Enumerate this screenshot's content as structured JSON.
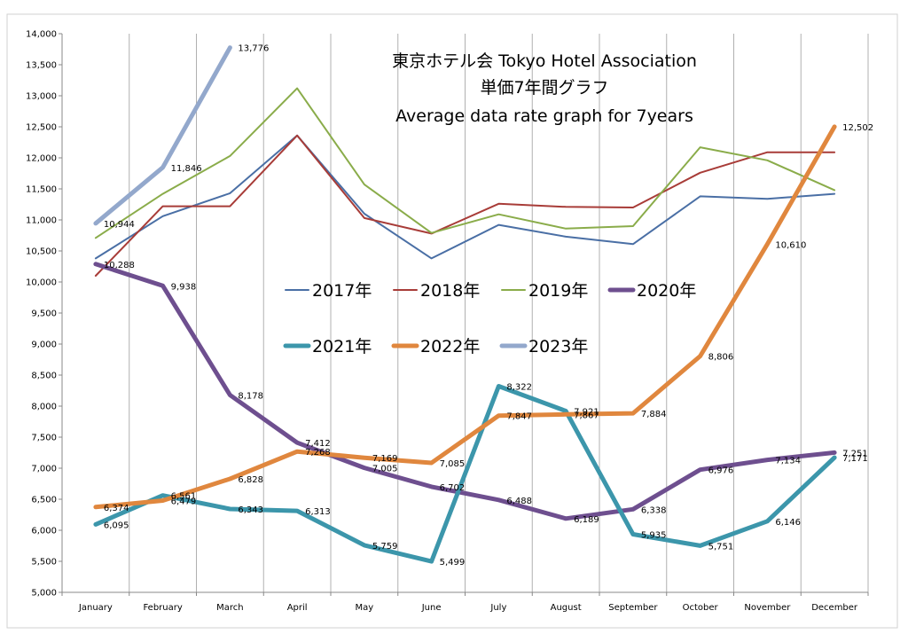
{
  "chart_data": {
    "type": "line",
    "title_lines": [
      "東京ホテル会  Tokyo Hotel Association",
      "単価7年間グラフ",
      "Average data rate graph for 7years"
    ],
    "xlabel": "",
    "ylabel": "",
    "categories": [
      "January",
      "February",
      "March",
      "April",
      "May",
      "June",
      "July",
      "August",
      "September",
      "October",
      "November",
      "December"
    ],
    "ylim": [
      5000,
      14000
    ],
    "ytick_step": 500,
    "ytick_labels": [
      "5,000",
      "5,500",
      "6,000",
      "6,500",
      "7,000",
      "7,500",
      "8,000",
      "8,500",
      "9,000",
      "9,500",
      "10,000",
      "10,500",
      "11,000",
      "11,500",
      "12,000",
      "12,500",
      "13,000",
      "13,500",
      "14,000"
    ],
    "grid": "vertical",
    "series": [
      {
        "name": "2017年",
        "color": "#4a6fa5",
        "width": 2,
        "labeled": false,
        "values": [
          10380,
          11060,
          11430,
          12360,
          11100,
          10380,
          10920,
          10730,
          10610,
          11380,
          11340,
          11420
        ]
      },
      {
        "name": "2018年",
        "color": "#a83c38",
        "width": 2,
        "labeled": false,
        "values": [
          10100,
          11220,
          11220,
          12360,
          11030,
          10780,
          11260,
          11210,
          11200,
          11760,
          12090,
          12090
        ]
      },
      {
        "name": "2019年",
        "color": "#8aac4a",
        "width": 2,
        "labeled": false,
        "values": [
          10710,
          11420,
          12030,
          13120,
          11570,
          10790,
          11090,
          10860,
          10900,
          12170,
          11960,
          11480
        ]
      },
      {
        "name": "2020年",
        "color": "#6e4f8f",
        "width": 5,
        "labeled": true,
        "values": [
          10288,
          9938,
          8178,
          7412,
          7005,
          6702,
          6488,
          6189,
          6338,
          6976,
          7134,
          7251
        ],
        "labels": [
          "10,288",
          "9,938",
          "8,178",
          "7,412",
          "7,005",
          "6,702",
          "6,488",
          "6,189",
          "6,338",
          "6,976",
          "7,134",
          "7,251"
        ]
      },
      {
        "name": "2021年",
        "color": "#3c96ab",
        "width": 5,
        "labeled": true,
        "values": [
          6095,
          6561,
          6343,
          6313,
          5759,
          5499,
          8322,
          7921,
          5935,
          5751,
          6146,
          7171
        ],
        "labels": [
          "6,095",
          "6,561",
          "6,343",
          "6,313",
          "5,759",
          "5,499",
          "8,322",
          "7,921",
          "5,935",
          "5,751",
          "6,146",
          "7,171"
        ]
      },
      {
        "name": "2022年",
        "color": "#e0873e",
        "width": 5,
        "labeled": true,
        "values": [
          6374,
          6479,
          6828,
          7268,
          7169,
          7085,
          7847,
          7867,
          7884,
          8806,
          10610,
          12502
        ],
        "labels": [
          "6,374",
          "6,479",
          "6,828",
          "7,268",
          "7,169",
          "7,085",
          "7,847",
          "7,867",
          "7,884",
          "8,806",
          "10,610",
          "12,502"
        ]
      },
      {
        "name": "2023年",
        "color": "#93a8cc",
        "width": 5,
        "labeled": true,
        "values": [
          10944,
          11846,
          13776,
          null,
          null,
          null,
          null,
          null,
          null,
          null,
          null,
          null
        ],
        "labels": [
          "10,944",
          "11,846",
          "13,776"
        ]
      }
    ],
    "legend": {
      "rows": [
        [
          "2017年",
          "2018年",
          "2019年",
          "2020年"
        ],
        [
          "2021年",
          "2022年",
          "2023年"
        ]
      ],
      "position": "center"
    }
  }
}
